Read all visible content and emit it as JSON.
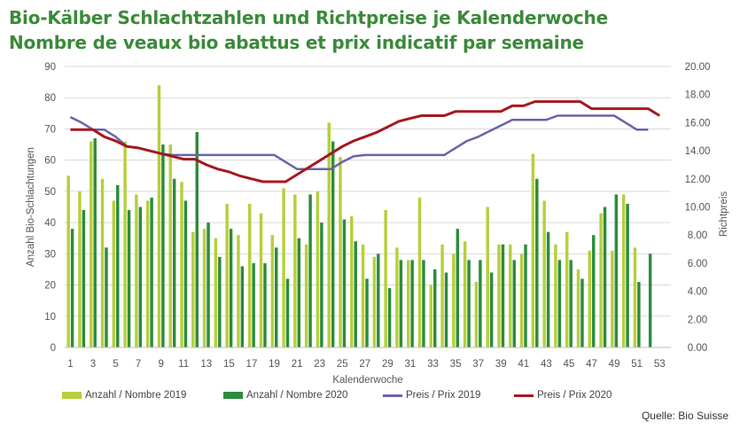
{
  "title": {
    "line1": "Bio-Kälber Schlachtzahlen und Richtpreise je Kalenderwoche",
    "line2": "Nombre de veaux bio abattus et prix indicatif par semaine"
  },
  "source": "Quelle: Bio Suisse",
  "colors": {
    "bars2019": "#b7cf3b",
    "bars2020": "#2e8b3c",
    "price2019": "#6a63a8",
    "price2020": "#a5181e",
    "grid": "#d9d9d9"
  },
  "legend": {
    "bars2019": "Anzahl / Nombre 2019",
    "bars2020": "Anzahl / Nombre 2020",
    "price2019": "Preis / Prix 2019",
    "price2020": "Preis / Prix 2020"
  },
  "chart_data": {
    "type": "bar",
    "xlabel": "Kalenderwoche",
    "ylabel": "Anzahl Bio-Schlachtungen",
    "y2label": "Richtpreis",
    "weeks": [
      1,
      2,
      3,
      4,
      5,
      6,
      7,
      8,
      9,
      10,
      11,
      12,
      13,
      14,
      15,
      16,
      17,
      18,
      19,
      20,
      21,
      22,
      23,
      24,
      25,
      26,
      27,
      28,
      29,
      30,
      31,
      32,
      33,
      34,
      35,
      36,
      37,
      38,
      39,
      40,
      41,
      42,
      43,
      44,
      45,
      46,
      47,
      48,
      49,
      50,
      51,
      52,
      53
    ],
    "xticks": [
      "1",
      "3",
      "5",
      "7",
      "9",
      "11",
      "13",
      "15",
      "17",
      "19",
      "21",
      "23",
      "25",
      "27",
      "29",
      "31",
      "33",
      "35",
      "37",
      "39",
      "41",
      "43",
      "45",
      "47",
      "49",
      "51",
      "53"
    ],
    "ylim": [
      0,
      90
    ],
    "yticks": [
      "0",
      "10",
      "20",
      "30",
      "40",
      "50",
      "60",
      "70",
      "80",
      "90"
    ],
    "y2lim": [
      0,
      20
    ],
    "y2ticks": [
      "0.00",
      "2.00",
      "4.00",
      "6.00",
      "8.00",
      "10.00",
      "12.00",
      "14.00",
      "16.00",
      "18.00",
      "20.00"
    ],
    "series": [
      {
        "name": "Anzahl / Nombre 2019",
        "kind": "bar",
        "axis": "left",
        "values": [
          55,
          50,
          66,
          54,
          47,
          66,
          49,
          47,
          84,
          65,
          53,
          37,
          38,
          35,
          46,
          36,
          46,
          43,
          36,
          51,
          49,
          33,
          50,
          72,
          61,
          42,
          33,
          29,
          44,
          32,
          28,
          48,
          20,
          33,
          30,
          34,
          21,
          45,
          33,
          33,
          30,
          62,
          47,
          33,
          37,
          25,
          31,
          43,
          31,
          49,
          32,
          null,
          null
        ]
      },
      {
        "name": "Anzahl / Nombre 2020",
        "kind": "bar",
        "axis": "left",
        "values": [
          38,
          44,
          67,
          32,
          52,
          44,
          45,
          48,
          65,
          54,
          47,
          69,
          40,
          29,
          38,
          26,
          27,
          27,
          32,
          22,
          35,
          49,
          40,
          66,
          41,
          34,
          22,
          30,
          19,
          28,
          28,
          28,
          25,
          24,
          38,
          28,
          28,
          24,
          33,
          28,
          33,
          54,
          37,
          28,
          28,
          22,
          36,
          45,
          49,
          46,
          21,
          30,
          null
        ]
      },
      {
        "name": "Preis / Prix 2019",
        "kind": "line",
        "axis": "right",
        "values": [
          16.4,
          16.0,
          15.5,
          15.5,
          15.0,
          14.3,
          14.2,
          14.0,
          13.8,
          13.7,
          13.7,
          13.7,
          13.7,
          13.7,
          13.7,
          13.7,
          13.7,
          13.7,
          13.7,
          13.2,
          12.7,
          12.7,
          12.7,
          12.7,
          13.2,
          13.6,
          13.7,
          13.7,
          13.7,
          13.7,
          13.7,
          13.7,
          13.7,
          13.7,
          14.2,
          14.7,
          15.0,
          15.4,
          15.8,
          16.2,
          16.2,
          16.2,
          16.2,
          16.5,
          16.5,
          16.5,
          16.5,
          16.5,
          16.5,
          16.0,
          15.5,
          15.5,
          null
        ]
      },
      {
        "name": "Preis / Prix 2020",
        "kind": "line",
        "axis": "right",
        "values": [
          15.5,
          15.5,
          15.5,
          15.0,
          14.7,
          14.3,
          14.2,
          14.0,
          13.8,
          13.6,
          13.4,
          13.4,
          13.0,
          12.7,
          12.5,
          12.2,
          12.0,
          11.8,
          11.8,
          11.8,
          12.3,
          12.8,
          13.3,
          13.8,
          14.3,
          14.7,
          15.0,
          15.3,
          15.7,
          16.1,
          16.3,
          16.5,
          16.5,
          16.5,
          16.8,
          16.8,
          16.8,
          16.8,
          16.8,
          17.2,
          17.2,
          17.5,
          17.5,
          17.5,
          17.5,
          17.5,
          17.0,
          17.0,
          17.0,
          17.0,
          17.0,
          17.0,
          16.5
        ]
      }
    ]
  }
}
